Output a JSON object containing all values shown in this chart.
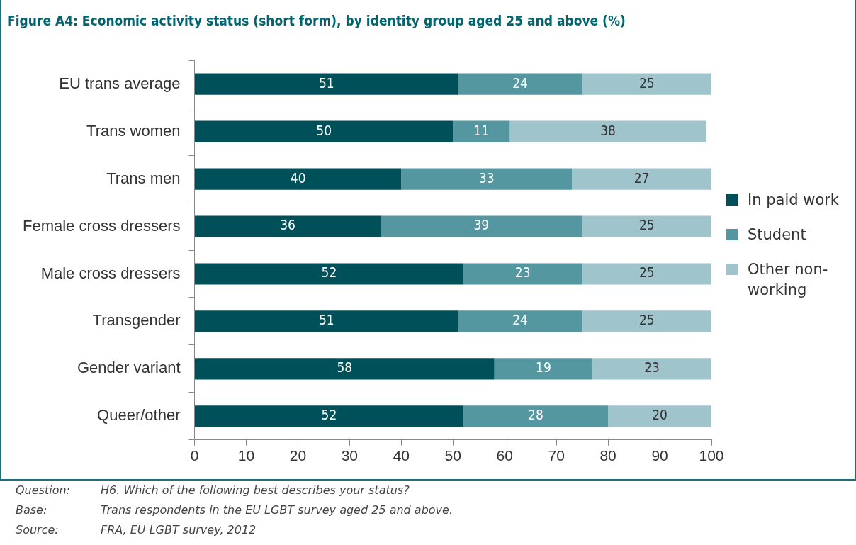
{
  "chart_data": {
    "type": "bar",
    "orientation": "horizontal",
    "stacked": true,
    "title": "Figure A4: Economic activity status (short form), by identity group aged 25 and above (%)",
    "categories": [
      "EU trans average",
      "Trans women",
      "Trans men",
      "Female cross dressers",
      "Male cross dressers",
      "Transgender",
      "Gender variant",
      "Queer/other"
    ],
    "series": [
      {
        "name": "In paid work",
        "color": "#00505a",
        "values": [
          51,
          50,
          40,
          36,
          52,
          51,
          58,
          52
        ]
      },
      {
        "name": "Student",
        "color": "#5497a0",
        "values": [
          24,
          11,
          33,
          39,
          23,
          24,
          19,
          28
        ]
      },
      {
        "name": "Other non-working",
        "color": "#a0c4cc",
        "values": [
          25,
          38,
          27,
          25,
          25,
          25,
          23,
          20
        ]
      }
    ],
    "xlim": [
      0,
      100
    ],
    "xticks": [
      0,
      10,
      20,
      30,
      40,
      50,
      60,
      70,
      80,
      90,
      100
    ],
    "grid": false,
    "legend": "right",
    "data_labels": true,
    "annotations": [
      "Question: H6. Which of the following best describes your status?",
      "Base: Trans respondents in the EU LGBT survey aged 25 and above.",
      "Source: FRA, EU LGBT survey, 2012"
    ]
  }
}
